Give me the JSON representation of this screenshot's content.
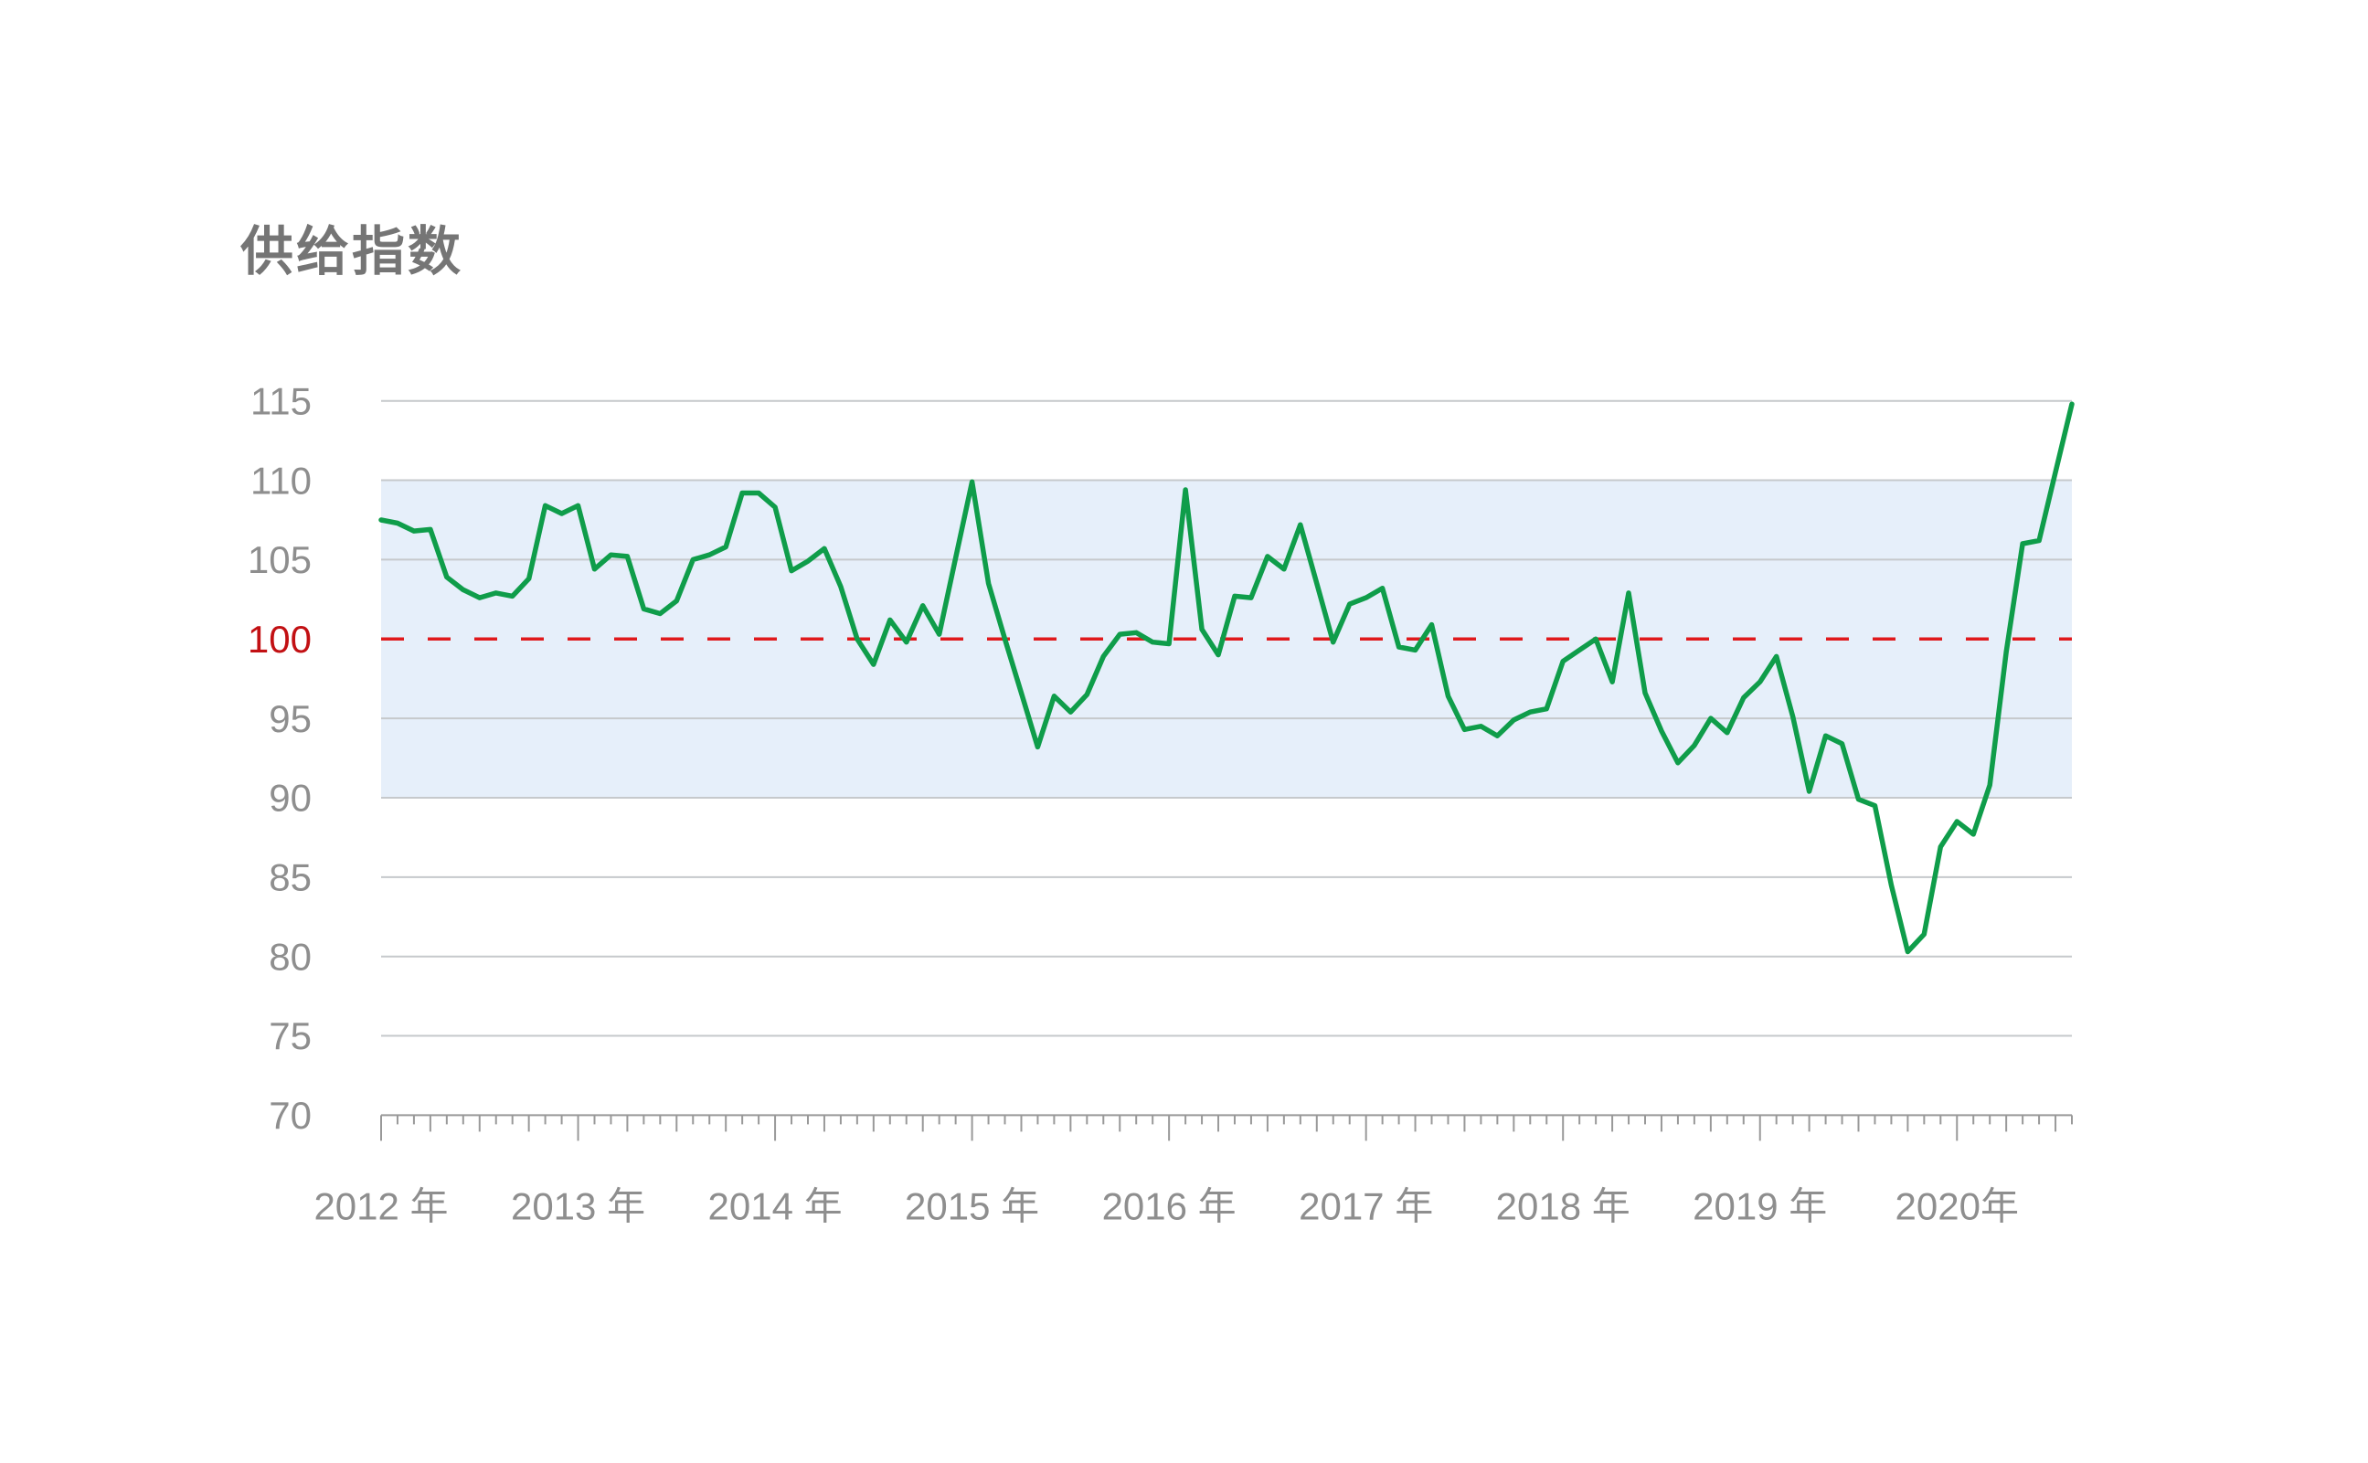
{
  "title": "供给指数",
  "colors": {
    "background": "#ffffff",
    "title_text": "#757575",
    "axis_label": "#8e8e8e",
    "axis_line": "#999999",
    "gridline": "#c6c9cc",
    "band_fill": "#e6effa",
    "series_line": "#0f9d4a",
    "reference_line": "#e0191c",
    "reference_label": "#c21013"
  },
  "chart_data": {
    "type": "line",
    "title": "供给指数",
    "xlabel": "",
    "ylabel": "",
    "ylim": [
      70,
      115
    ],
    "grid": true,
    "legend": false,
    "y_ticks": [
      70,
      75,
      80,
      85,
      90,
      95,
      100,
      105,
      110,
      115
    ],
    "reference_line": {
      "value": 100,
      "style": "dashed",
      "color": "#e0191c",
      "label": "100"
    },
    "band": {
      "from": 90,
      "to": 110,
      "color": "#e6effa"
    },
    "x_tick_labels": [
      "2012 年",
      "2013 年",
      "2014 年",
      "2015 年",
      "2016 年",
      "2017 年",
      "2018 年",
      "2019 年",
      "2020年"
    ],
    "x_frequency": "monthly",
    "x_start": "2012-01",
    "x_end": "2020-08",
    "x": [
      "2012-01",
      "2012-02",
      "2012-03",
      "2012-04",
      "2012-05",
      "2012-06",
      "2012-07",
      "2012-08",
      "2012-09",
      "2012-10",
      "2012-11",
      "2012-12",
      "2013-01",
      "2013-02",
      "2013-03",
      "2013-04",
      "2013-05",
      "2013-06",
      "2013-07",
      "2013-08",
      "2013-09",
      "2013-10",
      "2013-11",
      "2013-12",
      "2014-01",
      "2014-02",
      "2014-03",
      "2014-04",
      "2014-05",
      "2014-06",
      "2014-07",
      "2014-08",
      "2014-09",
      "2014-10",
      "2014-11",
      "2014-12",
      "2015-01",
      "2015-02",
      "2015-03",
      "2015-04",
      "2015-05",
      "2015-06",
      "2015-07",
      "2015-08",
      "2015-09",
      "2015-10",
      "2015-11",
      "2015-12",
      "2016-01",
      "2016-02",
      "2016-03",
      "2016-04",
      "2016-05",
      "2016-06",
      "2016-07",
      "2016-08",
      "2016-09",
      "2016-10",
      "2016-11",
      "2016-12",
      "2017-01",
      "2017-02",
      "2017-03",
      "2017-04",
      "2017-05",
      "2017-06",
      "2017-07",
      "2017-08",
      "2017-09",
      "2017-10",
      "2017-11",
      "2017-12",
      "2018-01",
      "2018-02",
      "2018-03",
      "2018-04",
      "2018-05",
      "2018-06",
      "2018-07",
      "2018-08",
      "2018-09",
      "2018-10",
      "2018-11",
      "2018-12",
      "2019-01",
      "2019-02",
      "2019-03",
      "2019-04",
      "2019-05",
      "2019-06",
      "2019-07",
      "2019-08",
      "2019-09",
      "2019-10",
      "2019-11",
      "2019-12",
      "2020-01",
      "2020-02",
      "2020-03",
      "2020-04",
      "2020-05",
      "2020-06",
      "2020-07",
      "2020-08"
    ],
    "series": [
      {
        "name": "供给指数",
        "color": "#0f9d4a",
        "values": [
          107.5,
          107.3,
          106.8,
          106.9,
          103.9,
          103.1,
          102.6,
          102.9,
          102.7,
          103.8,
          108.4,
          107.9,
          108.4,
          104.4,
          105.3,
          105.2,
          101.9,
          101.6,
          102.4,
          105.0,
          105.3,
          105.8,
          109.2,
          109.2,
          108.3,
          104.3,
          104.9,
          105.7,
          103.3,
          100.0,
          98.4,
          101.2,
          99.8,
          102.1,
          100.3,
          105.1,
          109.9,
          103.5,
          100.0,
          96.6,
          93.2,
          96.4,
          95.4,
          96.5,
          98.9,
          100.3,
          100.4,
          99.8,
          99.7,
          109.4,
          100.6,
          99.0,
          102.7,
          102.6,
          105.2,
          104.4,
          107.2,
          103.5,
          99.8,
          102.2,
          102.6,
          103.2,
          99.5,
          99.3,
          100.9,
          96.4,
          94.3,
          94.5,
          93.9,
          94.9,
          95.4,
          95.6,
          98.6,
          99.3,
          100.0,
          97.3,
          102.9,
          96.6,
          94.2,
          92.2,
          93.3,
          95.0,
          94.1,
          96.3,
          97.3,
          98.9,
          95.1,
          90.4,
          93.9,
          93.4,
          89.9,
          89.5,
          84.5,
          80.3,
          81.4,
          86.9,
          88.5,
          87.7,
          90.8,
          99.2,
          106.0,
          106.2,
          110.5,
          114.8
        ]
      }
    ]
  }
}
